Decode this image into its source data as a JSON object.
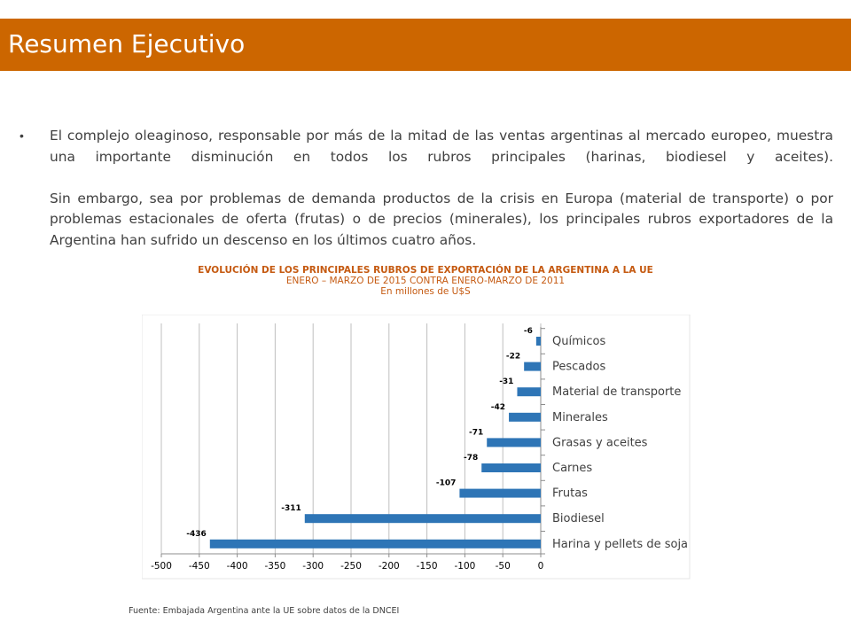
{
  "header": {
    "title": "Resumen Ejecutivo"
  },
  "bullet": {
    "para1": "El complejo oleaginoso, responsable por más de la mitad de las ventas argentinas al mercado europeo, muestra una importante disminución en todos los rubros principales (harinas, biodiesel y aceites).",
    "para2": "Sin embargo, sea por problemas de demanda productos de la crisis en Europa (material de transporte) o por problemas estacionales de oferta (frutas) o de precios (minerales), los principales rubros exportadores de la Argentina han sufrido un descenso en los últimos cuatro años."
  },
  "colors": {
    "banner": "#CC6600",
    "bar": "#2E75B6",
    "chart_title": "#C55A11",
    "text": "#404040"
  },
  "chart_data": {
    "type": "bar",
    "orientation": "horizontal",
    "title": "EVOLUCIÓN DE LOS PRINCIPALES RUBROS DE EXPORTACIÓN DE LA ARGENTINA A LA UE",
    "subtitle": "ENERO – MARZO DE 2015 CONTRA ENERO-MARZO DE 2011",
    "unit": "En millones de U$S",
    "categories": [
      "Químicos",
      "Pescados",
      "Material de transporte",
      "Minerales",
      "Grasas y aceites",
      "Carnes",
      "Frutas",
      "Biodiesel",
      "Harina y pellets de soja"
    ],
    "values": [
      -6,
      -22,
      -31,
      -42,
      -71,
      -78,
      -107,
      -311,
      -436
    ],
    "xlim": [
      -500,
      0
    ],
    "xticks": [
      -500,
      -450,
      -400,
      -350,
      -300,
      -250,
      -200,
      -150,
      -100,
      -50,
      0
    ],
    "grid": true
  },
  "footer": {
    "source": "Fuente: Embajada Argentina ante la UE sobre datos de la DNCEI"
  }
}
